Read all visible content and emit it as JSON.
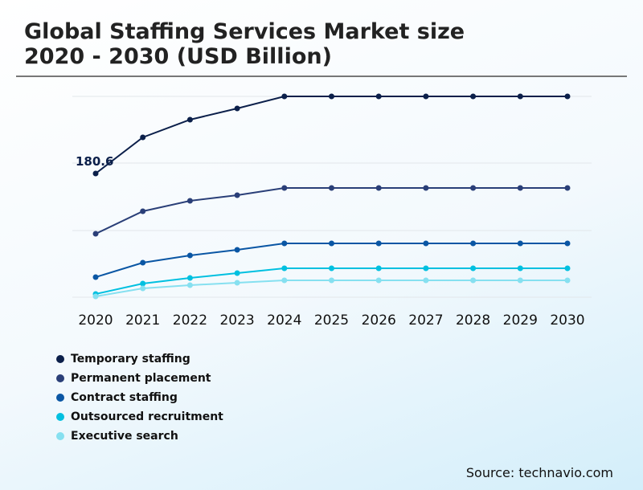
{
  "title_line1": "Global Staffing Services Market size",
  "title_line2": "2020 - 2030 (USD Billion)",
  "source": "Source: technavio.com",
  "chart_data": {
    "type": "line",
    "title": "Global Staffing Services Market size 2020 - 2030 (USD Billion)",
    "x": [
      "2020",
      "2021",
      "2022",
      "2023",
      "2024",
      "2025",
      "2026",
      "2027",
      "2028",
      "2029",
      "2030"
    ],
    "ylim": [
      0,
      300
    ],
    "grid": true,
    "legend_position": "bottom-left",
    "annotations": [
      {
        "series": "Temporary staffing",
        "x": "2020",
        "text": "180.6"
      }
    ],
    "series": [
      {
        "name": "Temporary staffing",
        "color": "#0b1f4a",
        "values": [
          180.6,
          233.4,
          259.2,
          275.6,
          293.2,
          293.2,
          293.2,
          293.2,
          293.2,
          293.2,
          293.2
        ]
      },
      {
        "name": "Permanent placement",
        "color": "#2a3f78",
        "values": [
          92.6,
          125.5,
          140.7,
          148.9,
          159.5,
          159.5,
          159.5,
          159.5,
          159.5,
          159.5,
          159.5
        ]
      },
      {
        "name": "Contract staffing",
        "color": "#0a56a4",
        "values": [
          29.3,
          50.4,
          61.0,
          69.2,
          78.6,
          78.6,
          78.6,
          78.6,
          78.6,
          78.6,
          78.6
        ]
      },
      {
        "name": "Outsourced recruitment",
        "color": "#00c0e0",
        "values": [
          4.7,
          19.9,
          28.1,
          35.2,
          42.2,
          42.2,
          42.2,
          42.2,
          42.2,
          42.2,
          42.2
        ]
      },
      {
        "name": "Executive search",
        "color": "#86e0f0",
        "values": [
          1.2,
          12.9,
          17.6,
          21.1,
          24.6,
          24.6,
          24.6,
          24.6,
          24.6,
          24.6,
          24.6
        ]
      }
    ]
  }
}
